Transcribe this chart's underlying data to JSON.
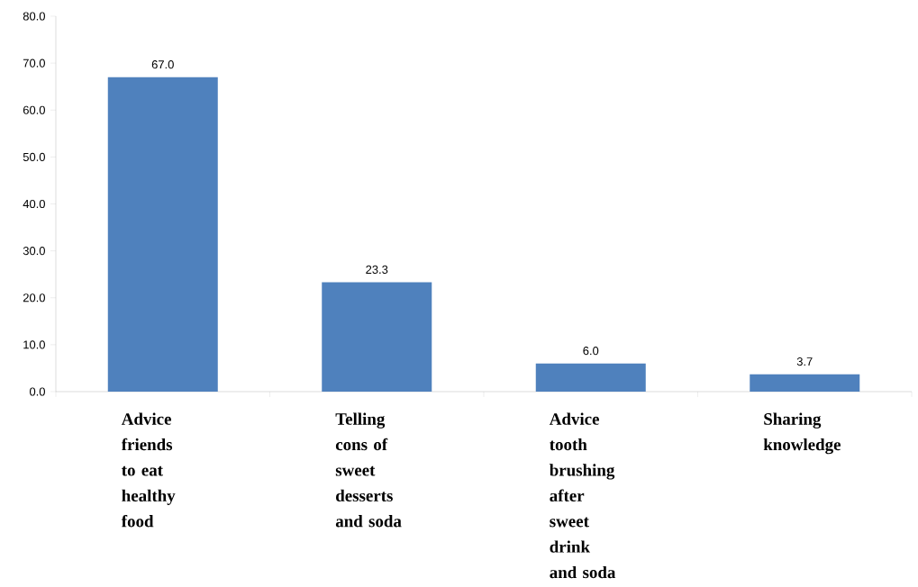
{
  "chart_data": {
    "type": "bar",
    "categories": [
      "Advice friends to eat healthy food",
      "Telling cons of sweet desserts and soda",
      "Advice tooth brushing after sweet drink and soda",
      "Sharing knowledge"
    ],
    "values": [
      67.0,
      23.3,
      6.0,
      3.7
    ],
    "value_labels": [
      "67.0",
      "23.3",
      "6.0",
      "3.7"
    ],
    "color": "#4f81bd",
    "ylim": [
      0,
      80
    ],
    "yticks": [
      {
        "value": 0,
        "label": "0.0"
      },
      {
        "value": 10,
        "label": "10.0"
      },
      {
        "value": 20,
        "label": "20.0"
      },
      {
        "value": 30,
        "label": "30.0"
      },
      {
        "value": 40,
        "label": "40.0"
      },
      {
        "value": 50,
        "label": "50.0"
      },
      {
        "value": 60,
        "label": "60.0"
      },
      {
        "value": 70,
        "label": "70.0"
      },
      {
        "value": 80,
        "label": "80.0"
      }
    ]
  }
}
